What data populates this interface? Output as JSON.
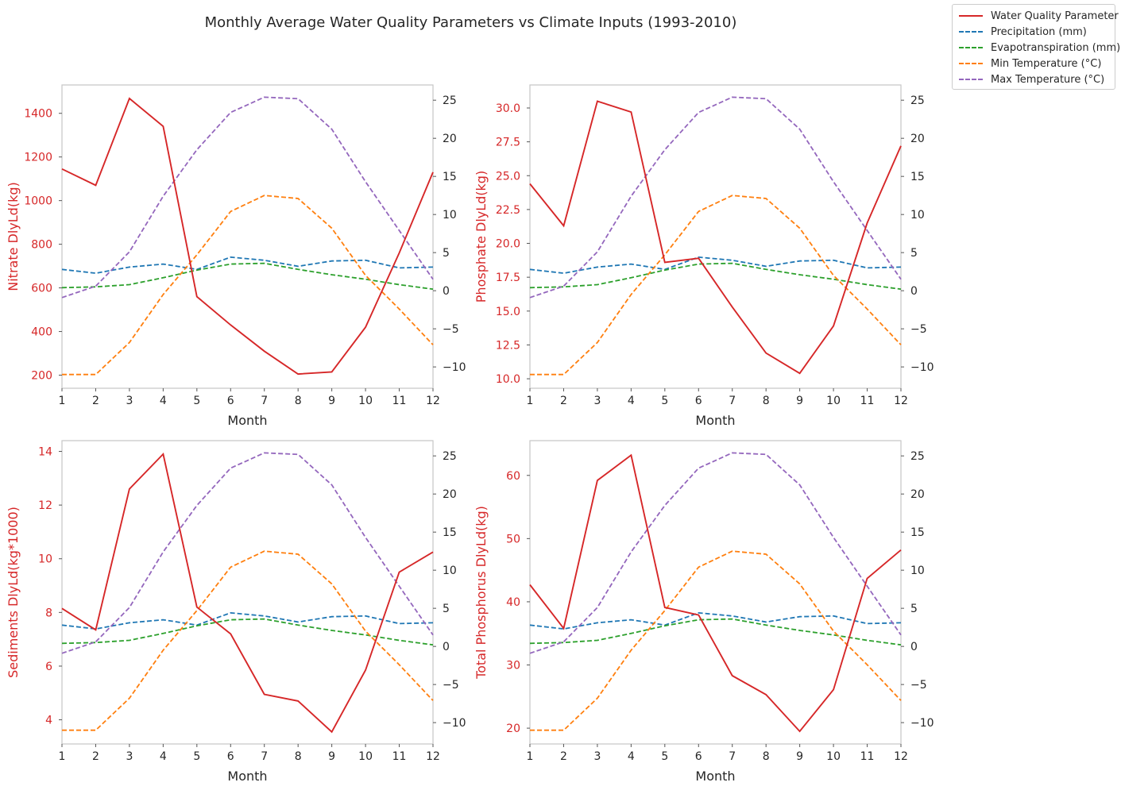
{
  "figure": {
    "title": "Monthly Average Water Quality Parameters vs Climate Inputs (1993-2010)"
  },
  "legend": {
    "items": [
      {
        "label": "Water Quality Parameter",
        "color": "#d62728",
        "style": "solid"
      },
      {
        "label": "Precipitation (mm)",
        "color": "#1f77b4",
        "style": "dashed"
      },
      {
        "label": "Evapotranspiration (mm)",
        "color": "#2ca02c",
        "style": "dashed"
      },
      {
        "label": "Min Temperature (°C)",
        "color": "#ff7f0e",
        "style": "dashed"
      },
      {
        "label": "Max Temperature (°C)",
        "color": "#9467bd",
        "style": "dashed"
      }
    ]
  },
  "chart_data": [
    {
      "type": "line",
      "xlabel": "Month",
      "ylabel": "Nitrate DlyLd(kg)",
      "x": [
        1,
        2,
        3,
        4,
        5,
        6,
        7,
        8,
        9,
        10,
        11,
        12
      ],
      "xlim": [
        1,
        12
      ],
      "ylim": [
        140,
        1530
      ],
      "yticks": [
        200,
        400,
        600,
        800,
        1000,
        1200,
        1400
      ],
      "y2lim": [
        -12.8,
        27
      ],
      "y2ticks": [
        -10,
        -5,
        0,
        5,
        10,
        15,
        20,
        25
      ],
      "grid": false,
      "legend_position": "outside-top-right",
      "primary_series": {
        "name": "Water Quality Parameter",
        "color": "#d62728",
        "values": [
          1145,
          1070,
          1468,
          1340,
          560,
          430,
          310,
          205,
          215,
          420,
          760,
          1130
        ]
      },
      "series": [
        {
          "name": "Precipitation (mm)",
          "color": "#1f77b4",
          "values": [
            2.8,
            2.3,
            3.1,
            3.5,
            2.8,
            4.4,
            4.0,
            3.2,
            3.9,
            4.0,
            3.0,
            3.1
          ]
        },
        {
          "name": "Evapotranspiration (mm)",
          "color": "#2ca02c",
          "values": [
            0.4,
            0.5,
            0.8,
            1.7,
            2.7,
            3.5,
            3.6,
            2.8,
            2.1,
            1.5,
            0.8,
            0.2
          ]
        },
        {
          "name": "Min Temperature (°C)",
          "color": "#ff7f0e",
          "values": [
            -11,
            -11,
            -6.8,
            -0.5,
            4.7,
            10.4,
            12.5,
            12.1,
            8.2,
            2.0,
            -2.4,
            -7.1
          ]
        },
        {
          "name": "Max Temperature (°C)",
          "color": "#9467bd",
          "values": [
            -0.9,
            0.6,
            5.1,
            12.4,
            18.5,
            23.4,
            25.4,
            25.2,
            21.2,
            14.3,
            7.9,
            1.5
          ]
        }
      ]
    },
    {
      "type": "line",
      "xlabel": "Month",
      "ylabel": "Phosphate DlyLd(kg)",
      "x": [
        1,
        2,
        3,
        4,
        5,
        6,
        7,
        8,
        9,
        10,
        11,
        12
      ],
      "xlim": [
        1,
        12
      ],
      "ylim": [
        9.3,
        31.7
      ],
      "yticks": [
        10.0,
        12.5,
        15.0,
        17.5,
        20.0,
        22.5,
        25.0,
        27.5,
        30.0
      ],
      "y2lim": [
        -12.8,
        27
      ],
      "y2ticks": [
        -10,
        -5,
        0,
        5,
        10,
        15,
        20,
        25
      ],
      "grid": false,
      "legend_position": "outside-top-right",
      "primary_series": {
        "name": "Water Quality Parameter",
        "color": "#d62728",
        "values": [
          24.4,
          21.3,
          30.5,
          29.7,
          18.6,
          18.9,
          15.3,
          11.9,
          10.4,
          13.9,
          21.5,
          27.2
        ]
      },
      "series": [
        {
          "name": "Precipitation (mm)",
          "color": "#1f77b4",
          "values": [
            2.8,
            2.3,
            3.1,
            3.5,
            2.8,
            4.4,
            4.0,
            3.2,
            3.9,
            4.0,
            3.0,
            3.1
          ]
        },
        {
          "name": "Evapotranspiration (mm)",
          "color": "#2ca02c",
          "values": [
            0.4,
            0.5,
            0.8,
            1.7,
            2.7,
            3.5,
            3.6,
            2.8,
            2.1,
            1.5,
            0.8,
            0.2
          ]
        },
        {
          "name": "Min Temperature (°C)",
          "color": "#ff7f0e",
          "values": [
            -11,
            -11,
            -6.8,
            -0.5,
            4.7,
            10.4,
            12.5,
            12.1,
            8.2,
            2.0,
            -2.4,
            -7.1
          ]
        },
        {
          "name": "Max Temperature (°C)",
          "color": "#9467bd",
          "values": [
            -0.9,
            0.6,
            5.1,
            12.4,
            18.5,
            23.4,
            25.4,
            25.2,
            21.2,
            14.3,
            7.9,
            1.5
          ]
        }
      ]
    },
    {
      "type": "line",
      "xlabel": "Month",
      "ylabel": "Sediments DlyLd(kg*1000)",
      "x": [
        1,
        2,
        3,
        4,
        5,
        6,
        7,
        8,
        9,
        10,
        11,
        12
      ],
      "xlim": [
        1,
        12
      ],
      "ylim": [
        3.1,
        14.4
      ],
      "yticks": [
        4,
        6,
        8,
        10,
        12,
        14
      ],
      "y2lim": [
        -12.8,
        27
      ],
      "y2ticks": [
        -10,
        -5,
        0,
        5,
        10,
        15,
        20,
        25
      ],
      "grid": false,
      "legend_position": "outside-top-right",
      "primary_series": {
        "name": "Water Quality Parameter",
        "color": "#d62728",
        "values": [
          8.15,
          7.35,
          12.6,
          13.9,
          8.2,
          7.2,
          4.95,
          4.7,
          3.55,
          5.85,
          9.5,
          10.25
        ]
      },
      "series": [
        {
          "name": "Precipitation (mm)",
          "color": "#1f77b4",
          "values": [
            2.8,
            2.3,
            3.1,
            3.5,
            2.8,
            4.4,
            4.0,
            3.2,
            3.9,
            4.0,
            3.0,
            3.1
          ]
        },
        {
          "name": "Evapotranspiration (mm)",
          "color": "#2ca02c",
          "values": [
            0.4,
            0.5,
            0.8,
            1.7,
            2.7,
            3.5,
            3.6,
            2.8,
            2.1,
            1.5,
            0.8,
            0.2
          ]
        },
        {
          "name": "Min Temperature (°C)",
          "color": "#ff7f0e",
          "values": [
            -11,
            -11,
            -6.8,
            -0.5,
            4.7,
            10.4,
            12.5,
            12.1,
            8.2,
            2.0,
            -2.4,
            -7.1
          ]
        },
        {
          "name": "Max Temperature (°C)",
          "color": "#9467bd",
          "values": [
            -0.9,
            0.6,
            5.1,
            12.4,
            18.5,
            23.4,
            25.4,
            25.2,
            21.2,
            14.3,
            7.9,
            1.5
          ]
        }
      ]
    },
    {
      "type": "line",
      "xlabel": "Month",
      "ylabel": "Total Phosphorus DlyLd(kg)",
      "x": [
        1,
        2,
        3,
        4,
        5,
        6,
        7,
        8,
        9,
        10,
        11,
        12
      ],
      "xlim": [
        1,
        12
      ],
      "ylim": [
        17.5,
        65.5
      ],
      "yticks": [
        20,
        30,
        40,
        50,
        60
      ],
      "y2lim": [
        -12.8,
        27
      ],
      "y2ticks": [
        -10,
        -5,
        0,
        5,
        10,
        15,
        20,
        25
      ],
      "grid": false,
      "legend_position": "outside-top-right",
      "primary_series": {
        "name": "Water Quality Parameter",
        "color": "#d62728",
        "values": [
          42.7,
          35.8,
          59.2,
          63.2,
          39.1,
          37.9,
          28.3,
          25.3,
          19.5,
          26.1,
          43.7,
          48.2
        ]
      },
      "series": [
        {
          "name": "Precipitation (mm)",
          "color": "#1f77b4",
          "values": [
            2.8,
            2.3,
            3.1,
            3.5,
            2.8,
            4.4,
            4.0,
            3.2,
            3.9,
            4.0,
            3.0,
            3.1
          ]
        },
        {
          "name": "Evapotranspiration (mm)",
          "color": "#2ca02c",
          "values": [
            0.4,
            0.5,
            0.8,
            1.7,
            2.7,
            3.5,
            3.6,
            2.8,
            2.1,
            1.5,
            0.8,
            0.2
          ]
        },
        {
          "name": "Min Temperature (°C)",
          "color": "#ff7f0e",
          "values": [
            -11,
            -11,
            -6.8,
            -0.5,
            4.7,
            10.4,
            12.5,
            12.1,
            8.2,
            2.0,
            -2.4,
            -7.1
          ]
        },
        {
          "name": "Max Temperature (°C)",
          "color": "#9467bd",
          "values": [
            -0.9,
            0.6,
            5.1,
            12.4,
            18.5,
            23.4,
            25.4,
            25.2,
            21.2,
            14.3,
            7.9,
            1.5
          ]
        }
      ]
    }
  ]
}
